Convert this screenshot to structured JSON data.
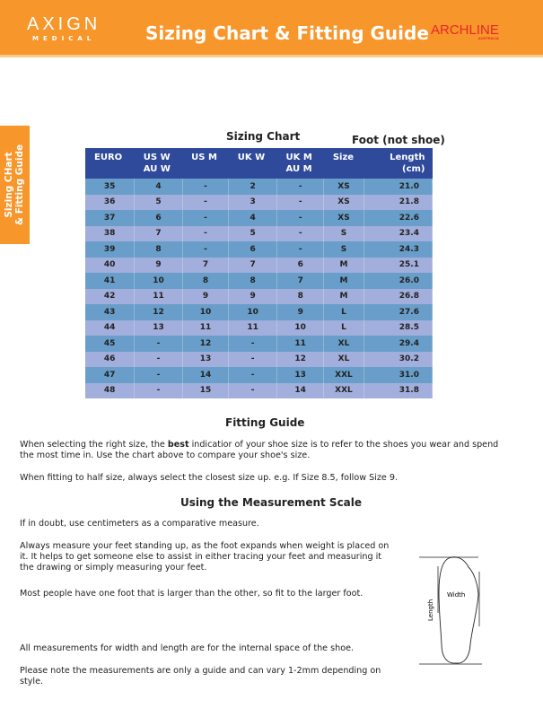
{
  "header": {
    "logo_left": "AXIGN",
    "logo_left_sub": "MEDICAL",
    "title": "Sizing Chart & Fitting Guide",
    "logo_right": "ARCHLINE",
    "logo_right_sub": "AUSTRALIA",
    "color": "#f7962b"
  },
  "side_tab": {
    "line1": "Sizing CHart",
    "line2": "& Fitting Guide"
  },
  "sizing": {
    "title": "Sizing Chart",
    "note": "Foot (not shoe)",
    "columns": [
      [
        "EURO",
        ""
      ],
      [
        "US W",
        "AU W"
      ],
      [
        "US M",
        ""
      ],
      [
        "UK W",
        ""
      ],
      [
        "UK M",
        "AU M"
      ],
      [
        "Size",
        ""
      ],
      [
        "Length",
        "(cm)"
      ]
    ],
    "rows": [
      [
        "35",
        "4",
        "-",
        "2",
        "-",
        "XS",
        "21.0"
      ],
      [
        "36",
        "5",
        "-",
        "3",
        "-",
        "XS",
        "21.8"
      ],
      [
        "37",
        "6",
        "-",
        "4",
        "-",
        "XS",
        "22.6"
      ],
      [
        "38",
        "7",
        "-",
        "5",
        "-",
        "S",
        "23.4"
      ],
      [
        "39",
        "8",
        "-",
        "6",
        "-",
        "S",
        "24.3"
      ],
      [
        "40",
        "9",
        "7",
        "7",
        "6",
        "M",
        "25.1"
      ],
      [
        "41",
        "10",
        "8",
        "8",
        "7",
        "M",
        "26.0"
      ],
      [
        "42",
        "11",
        "9",
        "9",
        "8",
        "M",
        "26.8"
      ],
      [
        "43",
        "12",
        "10",
        "10",
        "9",
        "L",
        "27.6"
      ],
      [
        "44",
        "13",
        "11",
        "11",
        "10",
        "L",
        "28.5"
      ],
      [
        "45",
        "-",
        "12",
        "-",
        "11",
        "XL",
        "29.4"
      ],
      [
        "46",
        "-",
        "13",
        "-",
        "12",
        "XL",
        "30.2"
      ],
      [
        "47",
        "-",
        "14",
        "-",
        "13",
        "XXL",
        "31.0"
      ],
      [
        "48",
        "-",
        "15",
        "-",
        "14",
        "XXL",
        "31.8"
      ]
    ]
  },
  "fitting": {
    "title": "Fitting Guide",
    "p1_pre": "When selecting the right size, the ",
    "p1_bold": "best",
    "p1_post": " indicatior of your shoe size is to refer to the shoes you wear and spend the most time in. Use the chart above to compare your shoe's size.",
    "p2": "When fitting to half size, always select the closest size up. e.g. If Size 8.5, follow Size 9."
  },
  "measure": {
    "title": "Using the Measurement Scale",
    "p1": "If in doubt, use centimeters as a comparative measure.",
    "p2": "Always measure your feet standing up, as the foot expands when weight is placed on it. It helps to get someone else to assist in either tracing your feet and measuring it the drawing or simply measuring your feet.",
    "p3": "Most people have one foot that is larger than the other, so fit to the larger foot.",
    "p4": "All measurements for width and length are for the internal space of the shoe.",
    "p5": "Please note the measurements are only a guide and can vary 1-2mm depending on style.",
    "diagram": {
      "width_label": "Width",
      "length_label": "Length"
    }
  }
}
